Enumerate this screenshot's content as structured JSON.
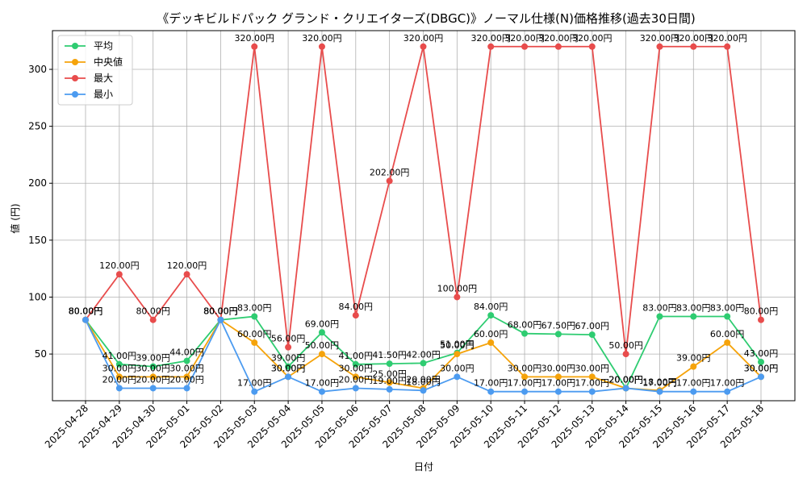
{
  "chart_data": {
    "type": "line",
    "title": "《デッキビルドパック グランド・クリエイターズ(DBGC)》ノーマル仕様(N)価格推移(過去30日間)",
    "xlabel": "日付",
    "ylabel": "値 (円)",
    "ylim": [
      9,
      334
    ],
    "yticks": [
      50,
      100,
      150,
      200,
      250,
      300
    ],
    "grid": true,
    "legend_position": "top-left",
    "value_label_suffix": "円",
    "categories": [
      "2025-04-28",
      "2025-04-29",
      "2025-04-30",
      "2025-05-01",
      "2025-05-02",
      "2025-05-03",
      "2025-05-04",
      "2025-05-05",
      "2025-05-06",
      "2025-05-07",
      "2025-05-08",
      "2025-05-09",
      "2025-05-10",
      "2025-05-11",
      "2025-05-12",
      "2025-05-13",
      "2025-05-14",
      "2025-05-15",
      "2025-05-16",
      "2025-05-17",
      "2025-05-18"
    ],
    "series": [
      {
        "name": "平均",
        "color": "#2ecc71",
        "values": [
          80,
          41,
          39,
          44,
          80,
          83,
          39,
          69,
          41,
          41.5,
          42,
          51,
          84,
          68,
          67.5,
          67,
          20,
          83,
          83,
          83,
          43
        ]
      },
      {
        "name": "中央値",
        "color": "#f5a30a",
        "values": [
          80,
          30,
          30,
          30,
          80,
          60,
          30,
          50,
          30,
          25,
          20,
          50,
          60,
          30,
          30,
          30,
          20,
          18,
          39,
          60,
          30
        ]
      },
      {
        "name": "最大",
        "color": "#e84c4c",
        "values": [
          80,
          120,
          80,
          120,
          80,
          320,
          56,
          320,
          84,
          202,
          320,
          100,
          320,
          320,
          320,
          320,
          50,
          320,
          320,
          320,
          80
        ]
      },
      {
        "name": "最小",
        "color": "#4c9bf0",
        "values": [
          80,
          20,
          20,
          20,
          80,
          17,
          30,
          17,
          20,
          19,
          18,
          30,
          17,
          17,
          17,
          17,
          20,
          17,
          17,
          17,
          30
        ]
      }
    ]
  }
}
